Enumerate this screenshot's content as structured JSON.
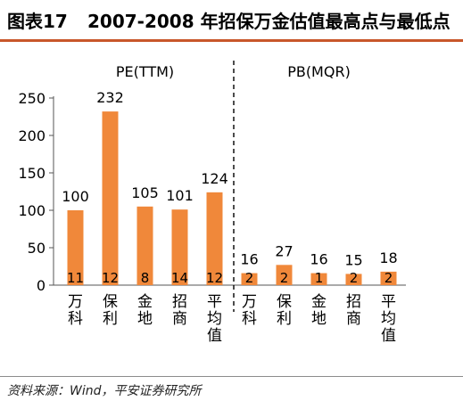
{
  "header": {
    "figure_number": "图表17",
    "title": "2007-2008 年招保万金估值最高点与最低点"
  },
  "footer": {
    "source": "资料来源：Wind，平安证券研究所"
  },
  "colors": {
    "bar": "#f0883a",
    "title_rule": "#c8572a",
    "axis": "#555555"
  },
  "chart_data": {
    "type": "bar",
    "panels": [
      {
        "label": "PE(TTM)",
        "categories": [
          "万科",
          "保利",
          "金地",
          "招商",
          "平均值"
        ]
      },
      {
        "label": "PB(MQR)",
        "categories": [
          "万科",
          "保利",
          "金地",
          "招商",
          "平均值"
        ]
      }
    ],
    "series": [
      {
        "values": [
          100,
          232,
          105,
          101,
          124,
          16,
          27,
          16,
          15,
          18
        ]
      }
    ],
    "low_values": [
      11,
      12,
      8,
      14,
      12,
      2,
      2,
      1,
      2,
      2
    ],
    "yticks": [
      0,
      50,
      100,
      150,
      200,
      250
    ],
    "ylim": [
      0,
      250
    ],
    "separator": "dashed vertical line between PE and PB panels",
    "grid": false,
    "legend": "none"
  }
}
